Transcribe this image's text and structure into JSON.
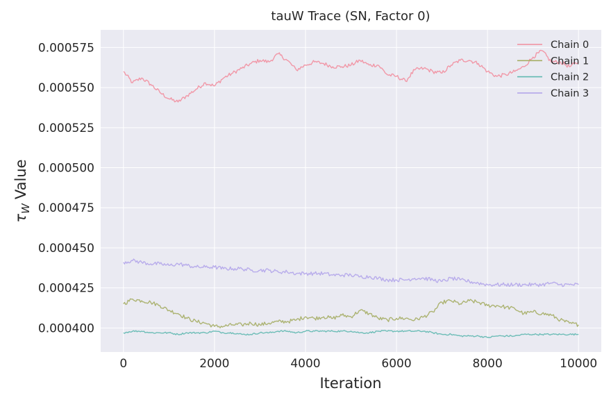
{
  "chart_data": {
    "type": "line",
    "title": "tauW Trace (SN, Factor 0)",
    "xlabel": "Iteration",
    "ylabel_symbol": "τ",
    "ylabel_subscript": "W",
    "ylabel_text": "Value",
    "xlim": [
      -500,
      10500
    ],
    "ylim": [
      0.000385,
      0.000586
    ],
    "x_ticks": [
      0,
      2000,
      4000,
      6000,
      8000,
      10000
    ],
    "y_ticks": [
      0.0004,
      0.000425,
      0.00045,
      0.000475,
      0.0005,
      0.000525,
      0.00055,
      0.000575
    ],
    "x_tick_labels": [
      "0",
      "2000",
      "4000",
      "6000",
      "8000",
      "10000"
    ],
    "y_tick_labels": [
      "0.000400",
      "0.000425",
      "0.000450",
      "0.000475",
      "0.000500",
      "0.000525",
      "0.000550",
      "0.000575"
    ],
    "grid": true,
    "legend_position": "top-right",
    "series": [
      {
        "name": "Chain 0",
        "color": "#f28e9e",
        "x": [
          0,
          200,
          400,
          600,
          800,
          1000,
          1200,
          1400,
          1600,
          1800,
          2000,
          2200,
          2400,
          2600,
          2800,
          3000,
          3200,
          3400,
          3600,
          3800,
          4000,
          4200,
          4400,
          4600,
          4800,
          5000,
          5200,
          5400,
          5600,
          5800,
          6000,
          6200,
          6400,
          6600,
          6800,
          7000,
          7200,
          7400,
          7600,
          7800,
          8000,
          8200,
          8400,
          8600,
          8800,
          9000,
          9200,
          9400,
          9600,
          9800,
          10000
        ],
        "values": [
          0.00056,
          0.000553,
          0.000556,
          0.000552,
          0.000547,
          0.000543,
          0.000541,
          0.000545,
          0.000549,
          0.000553,
          0.000551,
          0.000556,
          0.000559,
          0.000562,
          0.000565,
          0.000567,
          0.000566,
          0.000571,
          0.000567,
          0.000561,
          0.000564,
          0.000566,
          0.000565,
          0.000563,
          0.000563,
          0.000564,
          0.000567,
          0.000564,
          0.000564,
          0.000558,
          0.000557,
          0.000554,
          0.000561,
          0.000562,
          0.00056,
          0.000559,
          0.000564,
          0.000567,
          0.000567,
          0.000565,
          0.00056,
          0.000557,
          0.000558,
          0.00056,
          0.000563,
          0.000569,
          0.000573,
          0.000566,
          0.000566,
          0.000563,
          0.000566
        ]
      },
      {
        "name": "Chain 1",
        "color": "#a5ad64",
        "x": [
          0,
          200,
          400,
          600,
          800,
          1000,
          1200,
          1400,
          1600,
          1800,
          2000,
          2200,
          2400,
          2600,
          2800,
          3000,
          3200,
          3400,
          3600,
          3800,
          4000,
          4200,
          4400,
          4600,
          4800,
          5000,
          5200,
          5400,
          5600,
          5800,
          6000,
          6200,
          6400,
          6600,
          6800,
          7000,
          7200,
          7400,
          7600,
          7800,
          8000,
          8200,
          8400,
          8600,
          8800,
          9000,
          9200,
          9400,
          9600,
          9800,
          10000
        ],
        "values": [
          0.000415,
          0.000418,
          0.000417,
          0.000416,
          0.000414,
          0.000411,
          0.000409,
          0.000406,
          0.000404,
          0.000403,
          0.000401,
          0.000401,
          0.000402,
          0.000402,
          0.000403,
          0.000402,
          0.000403,
          0.000404,
          0.000404,
          0.000405,
          0.000407,
          0.000406,
          0.000407,
          0.000406,
          0.000408,
          0.000407,
          0.000411,
          0.000409,
          0.000406,
          0.000405,
          0.000406,
          0.000406,
          0.000405,
          0.000407,
          0.00041,
          0.000416,
          0.000417,
          0.000415,
          0.000417,
          0.000416,
          0.000414,
          0.000414,
          0.000413,
          0.000412,
          0.000409,
          0.00041,
          0.000409,
          0.000408,
          0.000405,
          0.000403,
          0.000402
        ]
      },
      {
        "name": "Chain 2",
        "color": "#5fb8b0",
        "x": [
          0,
          200,
          400,
          600,
          800,
          1000,
          1200,
          1400,
          1600,
          1800,
          2000,
          2200,
          2400,
          2600,
          2800,
          3000,
          3200,
          3400,
          3600,
          3800,
          4000,
          4200,
          4400,
          4600,
          4800,
          5000,
          5200,
          5400,
          5600,
          5800,
          6000,
          6200,
          6400,
          6600,
          6800,
          7000,
          7200,
          7400,
          7600,
          7800,
          8000,
          8200,
          8400,
          8600,
          8800,
          9000,
          9200,
          9400,
          9600,
          9800,
          10000
        ],
        "values": [
          0.000397,
          0.000398,
          0.000398,
          0.000397,
          0.000397,
          0.000397,
          0.000396,
          0.000397,
          0.000397,
          0.000397,
          0.000398,
          0.000397,
          0.000397,
          0.000396,
          0.000396,
          0.000397,
          0.000397,
          0.000398,
          0.000398,
          0.000397,
          0.000398,
          0.000398,
          0.000398,
          0.000398,
          0.000398,
          0.000398,
          0.000397,
          0.000397,
          0.000398,
          0.000398,
          0.000398,
          0.000398,
          0.000398,
          0.000398,
          0.000397,
          0.000396,
          0.000396,
          0.000395,
          0.000395,
          0.000395,
          0.000394,
          0.000395,
          0.000395,
          0.000395,
          0.000396,
          0.000396,
          0.000396,
          0.000396,
          0.000396,
          0.000396,
          0.000396
        ]
      },
      {
        "name": "Chain 3",
        "color": "#b3a5ea",
        "x": [
          0,
          200,
          400,
          600,
          800,
          1000,
          1200,
          1400,
          1600,
          1800,
          2000,
          2200,
          2400,
          2600,
          2800,
          3000,
          3200,
          3400,
          3600,
          3800,
          4000,
          4200,
          4400,
          4600,
          4800,
          5000,
          5200,
          5400,
          5600,
          5800,
          6000,
          6200,
          6400,
          6600,
          6800,
          7000,
          7200,
          7400,
          7600,
          7800,
          8000,
          8200,
          8400,
          8600,
          8800,
          9000,
          9200,
          9400,
          9600,
          9800,
          10000
        ],
        "values": [
          0.000441,
          0.000442,
          0.000441,
          0.00044,
          0.00044,
          0.000439,
          0.00044,
          0.000439,
          0.000438,
          0.000438,
          0.000438,
          0.000437,
          0.000437,
          0.000437,
          0.000436,
          0.000436,
          0.000436,
          0.000435,
          0.000435,
          0.000434,
          0.000434,
          0.000434,
          0.000434,
          0.000433,
          0.000433,
          0.000433,
          0.000432,
          0.000432,
          0.000431,
          0.00043,
          0.00043,
          0.00043,
          0.000431,
          0.000431,
          0.00043,
          0.000429,
          0.000431,
          0.00043,
          0.000429,
          0.000428,
          0.000427,
          0.000427,
          0.000427,
          0.000427,
          0.000427,
          0.000427,
          0.000427,
          0.000428,
          0.000427,
          0.000427,
          0.000427
        ]
      }
    ]
  }
}
